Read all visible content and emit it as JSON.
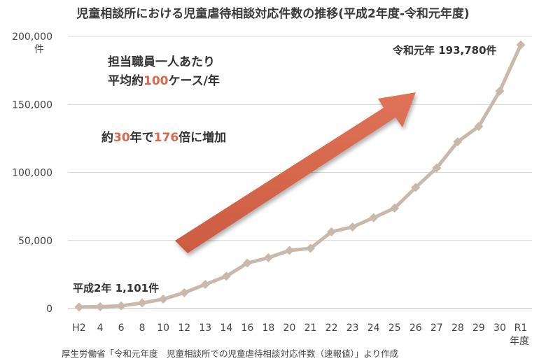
{
  "chart_data": {
    "type": "line",
    "title": "児童相談所における児童虐待相談対応件数の推移(平成2年度-令和元年度)",
    "y_unit": "件",
    "x_suffix": "年度",
    "categories": [
      "H2",
      "4",
      "6",
      "8",
      "10",
      "12",
      "13",
      "14",
      "16",
      "18",
      "20",
      "21",
      "22",
      "23",
      "24",
      "25",
      "26",
      "27",
      "28",
      "29",
      "30",
      "R1"
    ],
    "values": [
      1101,
      1372,
      1961,
      4102,
      6932,
      11631,
      17725,
      23738,
      33408,
      37323,
      42664,
      44211,
      56384,
      59919,
      66701,
      73802,
      88931,
      103286,
      122575,
      133778,
      159838,
      193780
    ],
    "yticks": [
      "0",
      "50,000",
      "100,000",
      "150,000",
      "200,000"
    ],
    "ylim": [
      0,
      200000
    ],
    "line_color": "#c8b9ad",
    "arrow_color": "#d9674b"
  },
  "annotations": {
    "line1": "担当職員一人あたり",
    "line2_pre": "平均約",
    "line2_hl": "100",
    "line2_post": "ケース/年",
    "line3_pre": "約",
    "line3_hl1": "30",
    "line3_mid": "年で",
    "line3_hl2": "176",
    "line3_post": "倍に増加",
    "start_label": "平成2年 1,101件",
    "end_label": "令和元年 193,780件"
  },
  "source": "厚生労働省「令和元年度　児童相談所での児童虐待相談対応件数（速報値）」より作成"
}
